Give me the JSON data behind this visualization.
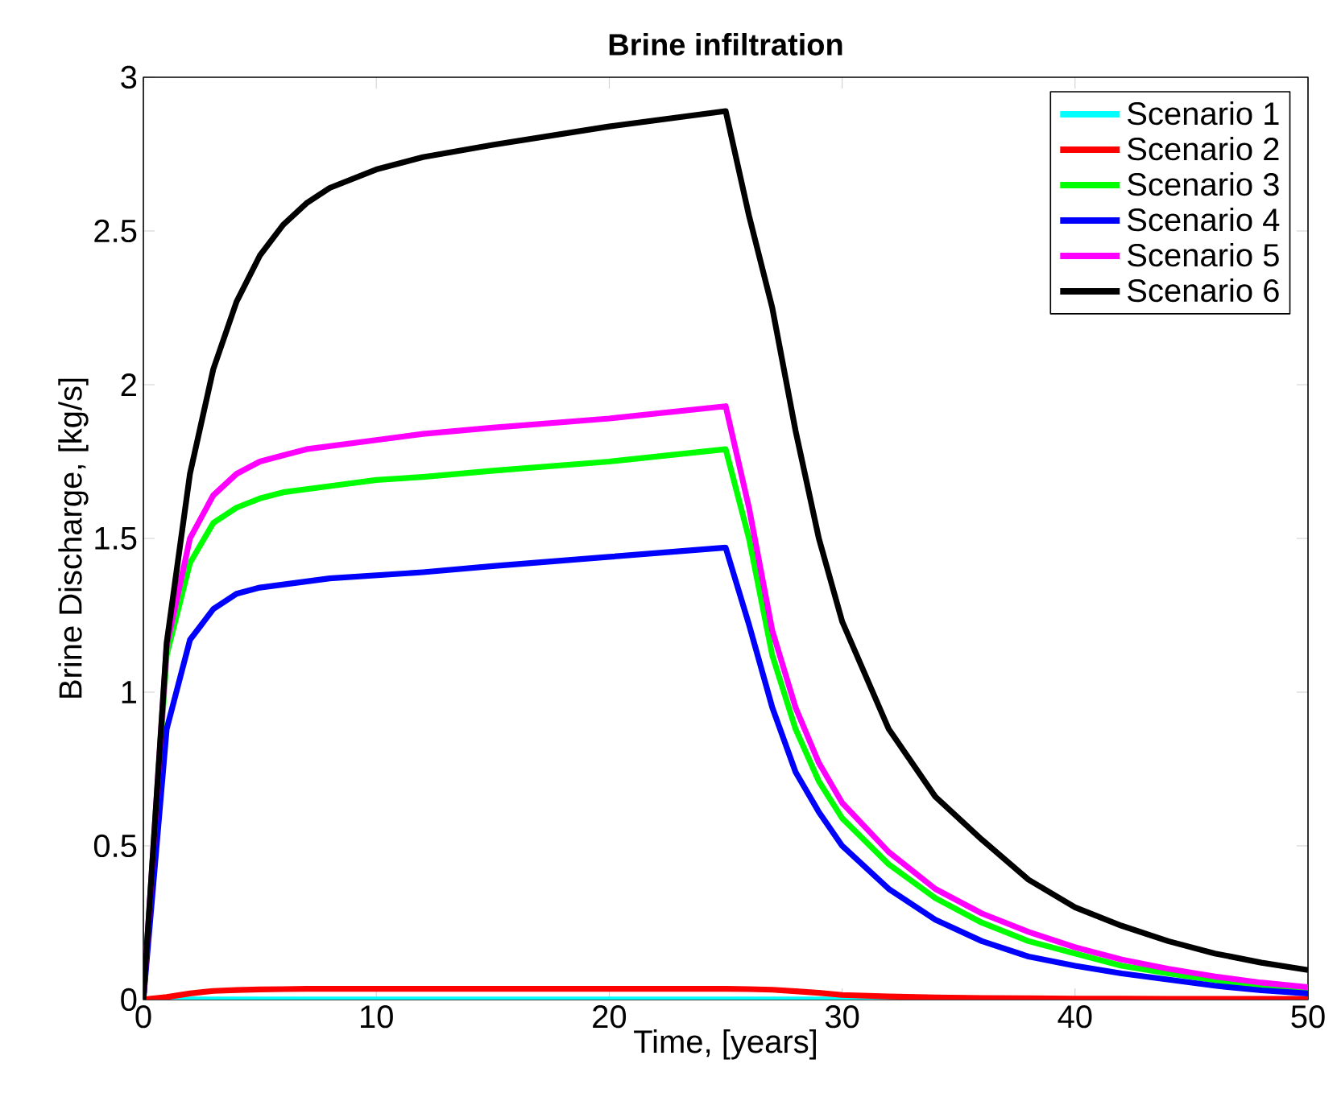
{
  "chart_data": {
    "type": "line",
    "title": "Brine infiltration",
    "xlabel": "Time, [years]",
    "ylabel": "Brine Discharge, [kg/s]",
    "x": [
      0,
      1,
      2,
      3,
      4,
      5,
      6,
      7,
      8,
      10,
      12,
      15,
      20,
      25,
      26,
      27,
      28,
      29,
      30,
      32,
      34,
      36,
      38,
      40,
      42,
      44,
      46,
      48,
      50
    ],
    "series": [
      {
        "name": "Scenario 1",
        "color": "#00ffff",
        "values": [
          0,
          0,
          0,
          0,
          0,
          0,
          0,
          0,
          0,
          0,
          0,
          0,
          0,
          0,
          0,
          0,
          0,
          0,
          0,
          0,
          0,
          null,
          null,
          null,
          null,
          null,
          null,
          null,
          null
        ]
      },
      {
        "name": "Scenario 2",
        "color": "#ff0000",
        "values": [
          0,
          0.008,
          0.02,
          0.028,
          0.031,
          0.033,
          0.034,
          0.035,
          0.035,
          0.035,
          0.035,
          0.035,
          0.035,
          0.035,
          0.034,
          0.032,
          0.027,
          0.022,
          0.015,
          0.01,
          0.007,
          0.005,
          0.004,
          0.003,
          0.003,
          0.002,
          0.002,
          0.002,
          0.002
        ]
      },
      {
        "name": "Scenario 3",
        "color": "#00ff00",
        "values": [
          0,
          1.12,
          1.42,
          1.55,
          1.6,
          1.63,
          1.65,
          1.66,
          1.67,
          1.69,
          1.7,
          1.72,
          1.75,
          1.79,
          1.5,
          1.12,
          0.88,
          0.71,
          0.59,
          0.44,
          0.33,
          0.25,
          0.19,
          0.15,
          0.11,
          0.085,
          0.063,
          0.045,
          0.03
        ]
      },
      {
        "name": "Scenario 4",
        "color": "#0000ff",
        "values": [
          0,
          0.88,
          1.17,
          1.27,
          1.32,
          1.34,
          1.35,
          1.36,
          1.37,
          1.38,
          1.39,
          1.41,
          1.44,
          1.47,
          1.22,
          0.95,
          0.74,
          0.61,
          0.5,
          0.36,
          0.26,
          0.19,
          0.14,
          0.11,
          0.085,
          0.065,
          0.045,
          0.03,
          0.02
        ]
      },
      {
        "name": "Scenario 5",
        "color": "#ff00ff",
        "values": [
          0,
          1.15,
          1.5,
          1.64,
          1.71,
          1.75,
          1.77,
          1.79,
          1.8,
          1.82,
          1.84,
          1.86,
          1.89,
          1.93,
          1.6,
          1.2,
          0.95,
          0.77,
          0.64,
          0.48,
          0.36,
          0.28,
          0.22,
          0.17,
          0.13,
          0.1,
          0.075,
          0.055,
          0.04
        ]
      },
      {
        "name": "Scenario 6",
        "color": "#000000",
        "values": [
          0,
          1.16,
          1.71,
          2.05,
          2.27,
          2.42,
          2.52,
          2.59,
          2.64,
          2.7,
          2.74,
          2.78,
          2.84,
          2.89,
          2.55,
          2.25,
          1.85,
          1.5,
          1.23,
          0.88,
          0.66,
          0.52,
          0.39,
          0.3,
          0.24,
          0.19,
          0.15,
          0.12,
          0.096
        ]
      }
    ],
    "xlim": [
      0,
      50
    ],
    "xticks": [
      0,
      10,
      20,
      30,
      40,
      50
    ],
    "ylim": [
      0,
      3
    ],
    "yticks": [
      0,
      0.5,
      1,
      1.5,
      2,
      2.5,
      3
    ],
    "legend": "top right",
    "grid": false,
    "marker": "none",
    "line_style": "solid"
  }
}
